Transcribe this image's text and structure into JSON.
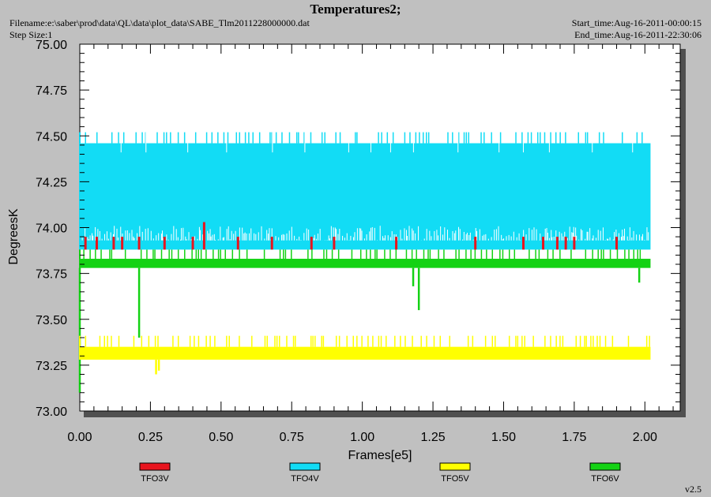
{
  "header": {
    "title": "Temperatures2;",
    "filename": "Filename:e:\\saber\\prod\\data\\QL\\data\\plot_data\\SABE_Tlm2011228000000.dat",
    "step_size": "Step Size:1",
    "start_time": "Start_time:Aug-16-2011-00:00:15",
    "end_time": "End_time:Aug-16-2011-22:30:06"
  },
  "footer": {
    "version": "v2.5"
  },
  "colors": {
    "page_bg": "#c0c0c0",
    "plot_bg": "#ffffff",
    "TFO3V": "#e8141e",
    "TFO4V": "#12dcf5",
    "TFO5V": "#ffff00",
    "TFO6V": "#14d214"
  },
  "chart_data": {
    "type": "line",
    "title": "Temperatures2;",
    "xlabel": "Frames[e5]",
    "ylabel": "DegreesK",
    "xlim": [
      0,
      2.125
    ],
    "ylim": [
      73.0,
      75.0
    ],
    "x_ticks": [
      "0.00",
      "0.25",
      "0.50",
      "0.75",
      "1.00",
      "1.25",
      "1.50",
      "1.75",
      "2.00"
    ],
    "y_ticks": [
      "73.00",
      "73.25",
      "73.50",
      "73.75",
      "74.00",
      "74.25",
      "74.50",
      "74.75",
      "75.00"
    ],
    "grid": false,
    "legend_position": "bottom",
    "series": [
      {
        "name": "TFO3V",
        "x_range": [
          0.0,
          2.02
        ],
        "values": [
          73.88,
          73.95
        ],
        "spikes": [
          [
            0.02,
            73.95
          ],
          [
            0.06,
            73.95
          ],
          [
            0.12,
            73.95
          ],
          [
            0.15,
            73.95
          ],
          [
            0.21,
            73.95
          ],
          [
            0.3,
            73.95
          ],
          [
            0.4,
            73.95
          ],
          [
            0.44,
            74.03
          ],
          [
            0.56,
            73.95
          ],
          [
            0.68,
            73.95
          ],
          [
            0.82,
            73.95
          ],
          [
            0.9,
            73.95
          ],
          [
            1.12,
            73.95
          ],
          [
            1.4,
            73.95
          ],
          [
            1.57,
            73.95
          ],
          [
            1.64,
            73.95
          ],
          [
            1.69,
            73.95
          ],
          [
            1.72,
            73.95
          ],
          [
            1.75,
            73.95
          ],
          [
            1.9,
            73.95
          ]
        ]
      },
      {
        "name": "TFO4V",
        "x_range": [
          0.0,
          2.02
        ],
        "values": [
          73.88,
          74.46,
          74.52
        ],
        "low": 73.88,
        "high": 74.46,
        "peak": 74.52
      },
      {
        "name": "TFO5V",
        "x_range": [
          0.0,
          2.02
        ],
        "values": [
          73.28,
          73.35,
          73.41
        ],
        "low": 73.28,
        "high": 73.35,
        "peak": 73.41,
        "spikes": [
          [
            0.27,
            73.2
          ],
          [
            0.28,
            73.22
          ]
        ]
      },
      {
        "name": "TFO6V",
        "x_range": [
          0.0,
          2.02
        ],
        "values": [
          73.78,
          73.83,
          73.88
        ],
        "low": 73.78,
        "high": 73.83,
        "peak": 73.88,
        "spikes": [
          [
            0.0,
            73.1
          ],
          [
            0.21,
            73.4
          ],
          [
            1.18,
            73.68
          ],
          [
            1.2,
            73.55
          ],
          [
            1.98,
            73.7
          ]
        ]
      }
    ]
  }
}
